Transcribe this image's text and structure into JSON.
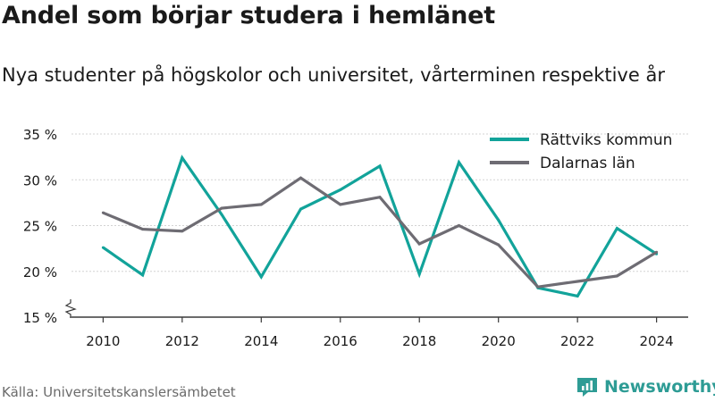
{
  "header": {
    "title": "Andel som börjar studera i hemlänet",
    "subtitle": "Nya studenter på högskolor och universitet, vårterminen respektive år"
  },
  "footer": {
    "source": "Källa: Universitetskanslersämbetet",
    "brand": "Newsworthy"
  },
  "colors": {
    "rattvik": "#12a39a",
    "dalarna": "#6e6c73",
    "grid": "#d3d3d3",
    "brand": "#2e9c95"
  },
  "chart_data": {
    "type": "line",
    "x": [
      2010,
      2011,
      2012,
      2013,
      2014,
      2015,
      2016,
      2017,
      2018,
      2019,
      2020,
      2021,
      2022,
      2023,
      2024
    ],
    "series": [
      {
        "name": "Rättviks kommun",
        "color": "#12a39a",
        "values": [
          22.6,
          19.6,
          32.4,
          26.2,
          19.4,
          26.8,
          28.9,
          31.5,
          19.7,
          31.9,
          25.6,
          18.2,
          17.3,
          24.7,
          21.9
        ]
      },
      {
        "name": "Dalarnas län",
        "color": "#6e6c73",
        "values": [
          26.4,
          24.6,
          24.4,
          26.9,
          27.3,
          30.2,
          27.3,
          28.1,
          23.0,
          25.0,
          22.9,
          18.3,
          18.9,
          19.5,
          22.1
        ]
      }
    ],
    "xticks": [
      "2010",
      "2012",
      "2014",
      "2016",
      "2018",
      "2020",
      "2022",
      "2024"
    ],
    "yticks": [
      "15 %",
      "20 %",
      "25 %",
      "30 %",
      "35 %"
    ],
    "ytick_values": [
      15,
      20,
      25,
      30,
      35
    ],
    "ylim": [
      15,
      35
    ],
    "xlim": [
      2009.2,
      2024.8
    ],
    "axis_break": true,
    "grid": true,
    "legend_position": "top-right"
  }
}
